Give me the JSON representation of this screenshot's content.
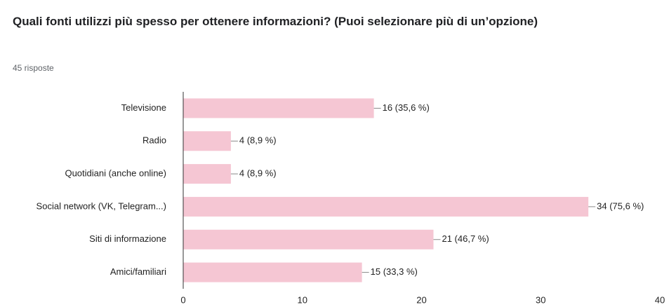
{
  "chart_data": {
    "type": "barh",
    "title": "Quali fonti utilizzi più spesso per ottenere informazioni? (Puoi selezionare più di un’opzione)",
    "subtitle": "45 risposte",
    "categories": [
      "Televisione",
      "Radio",
      "Quotidiani (anche online)",
      "Social network (VK, Telegram...)",
      "Siti di informazione",
      "Amici/familiari"
    ],
    "values": [
      16,
      4,
      4,
      34,
      21,
      15
    ],
    "value_labels": [
      "16 (35,6 %)",
      "4 (8,9 %)",
      "4 (8,9 %)",
      "34 (75,6 %)",
      "21 (46,7 %)",
      "15 (33,3 %)"
    ],
    "color": "#f5c6d3",
    "xlim": [
      0,
      40
    ],
    "xticks": [
      0,
      10,
      20,
      30,
      40
    ],
    "grid": false
  }
}
